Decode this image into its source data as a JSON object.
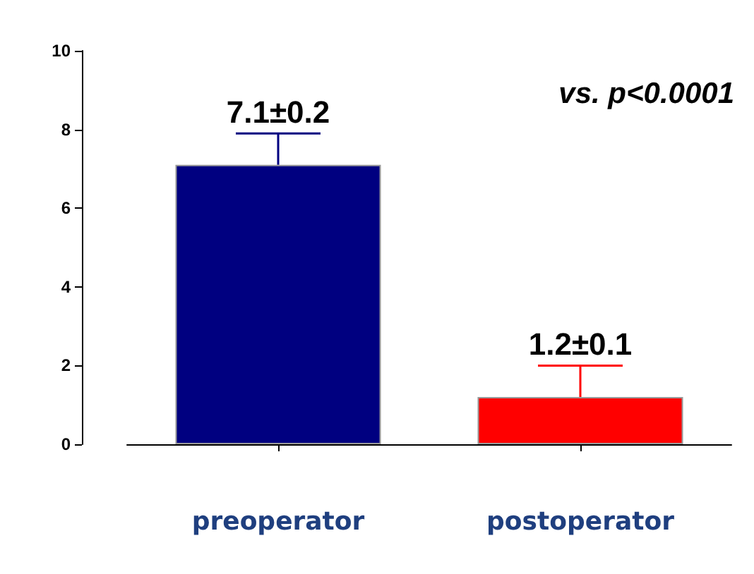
{
  "chart_data": {
    "type": "bar",
    "categories": [
      "preoperator",
      "postoperator"
    ],
    "values": [
      7.1,
      1.2
    ],
    "colors": [
      "#000080",
      "#ff0000"
    ],
    "errors": [
      [
        7.1,
        7.9
      ],
      [
        1.2,
        2.0
      ]
    ],
    "value_labels": [
      "7.1±0.2",
      "1.2±0.1"
    ],
    "ylim": [
      0,
      10
    ],
    "yticks": [
      0,
      2,
      4,
      6,
      8,
      10
    ],
    "annotations": [
      "vs. p<0.0001"
    ],
    "grid": false
  }
}
